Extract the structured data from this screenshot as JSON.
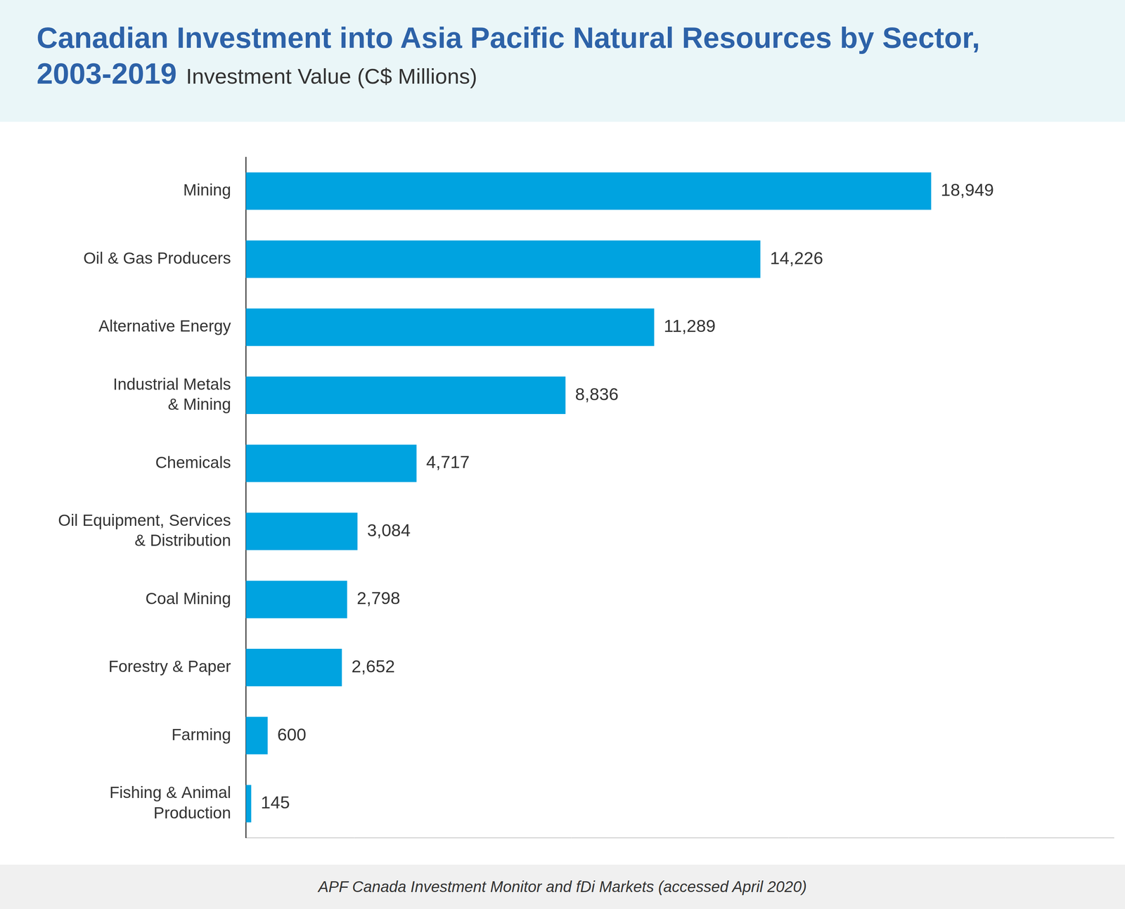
{
  "chart_data": {
    "type": "bar",
    "orientation": "horizontal",
    "title": "Canadian Investment into Asia Pacific Natural Resources by Sector, 2003-2019",
    "subtitle": "Investment Value (C$ Millions)",
    "source": "APF Canada Investment Monitor and fDi Markets (accessed April 2020)",
    "categories": [
      "Mining",
      "Oil & Gas Producers",
      "Alternative Energy",
      "Industrial Metals & Mining",
      "Chemicals",
      "Oil Equipment, Services & Distribution",
      "Coal Mining",
      "Forestry & Paper",
      "Farming",
      "Fishing & Animal Production"
    ],
    "values": [
      18949,
      14226,
      11289,
      8836,
      4717,
      3084,
      2798,
      2652,
      600,
      145
    ],
    "value_labels": [
      "18,949",
      "14,226",
      "11,289",
      "8,836",
      "4,717",
      "3,084",
      "2,798",
      "2,652",
      "600",
      "145"
    ],
    "color": "#00a3e0",
    "xlim": [
      0,
      24000
    ],
    "grid": false,
    "data_labels": true,
    "tick_labels": "y"
  }
}
